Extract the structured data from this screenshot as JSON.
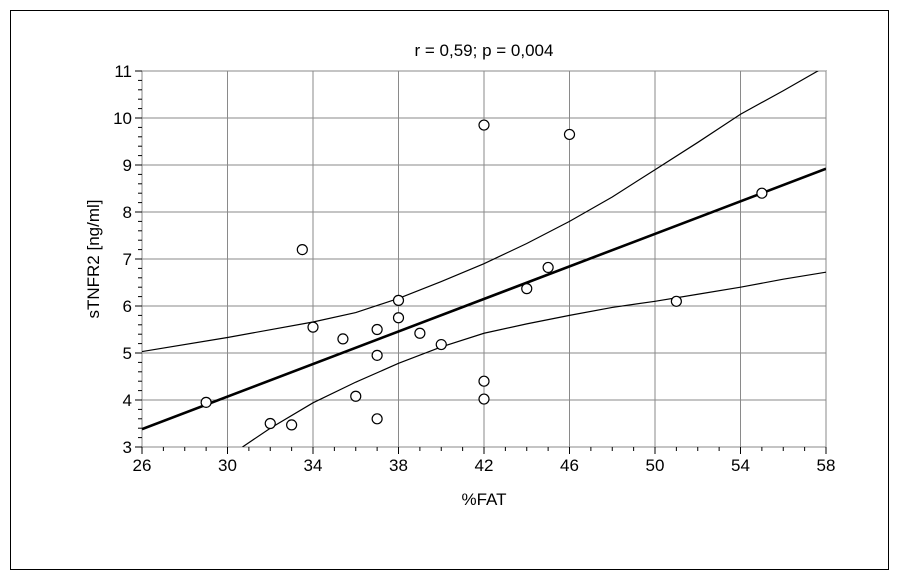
{
  "chart_data": {
    "type": "scatter",
    "title": "r = 0,59; p = 0,004",
    "xlabel": "%FAT",
    "ylabel": "sTNFR2 [ng/ml]",
    "xlim": [
      26,
      58
    ],
    "ylim": [
      3,
      11
    ],
    "xticks": [
      26,
      30,
      34,
      38,
      42,
      46,
      50,
      54,
      58
    ],
    "yticks": [
      3,
      4,
      5,
      6,
      7,
      8,
      9,
      10,
      11
    ],
    "grid": true,
    "points": [
      {
        "x": 29,
        "y": 3.95
      },
      {
        "x": 32,
        "y": 3.5
      },
      {
        "x": 33,
        "y": 3.47
      },
      {
        "x": 33.5,
        "y": 7.2
      },
      {
        "x": 34,
        "y": 5.55
      },
      {
        "x": 35.4,
        "y": 5.3
      },
      {
        "x": 36,
        "y": 4.08
      },
      {
        "x": 37,
        "y": 3.6
      },
      {
        "x": 37,
        "y": 4.95
      },
      {
        "x": 37,
        "y": 5.5
      },
      {
        "x": 38,
        "y": 5.75
      },
      {
        "x": 38,
        "y": 6.12
      },
      {
        "x": 39,
        "y": 5.42
      },
      {
        "x": 40,
        "y": 5.18
      },
      {
        "x": 42,
        "y": 4.02
      },
      {
        "x": 42,
        "y": 4.4
      },
      {
        "x": 42,
        "y": 9.85
      },
      {
        "x": 44,
        "y": 6.37
      },
      {
        "x": 45,
        "y": 6.82
      },
      {
        "x": 46,
        "y": 9.65
      },
      {
        "x": 51,
        "y": 6.1
      },
      {
        "x": 55,
        "y": 8.4
      }
    ],
    "regression_line": {
      "x": [
        26,
        58
      ],
      "y": [
        3.38,
        8.92
      ]
    },
    "confidence_upper": {
      "x": [
        26,
        30,
        34,
        36,
        38,
        40,
        42,
        44,
        46,
        48,
        50,
        52,
        54,
        56,
        58
      ],
      "y": [
        5.03,
        5.33,
        5.66,
        5.86,
        6.16,
        6.52,
        6.9,
        7.33,
        7.8,
        8.32,
        8.9,
        9.48,
        10.08,
        10.58,
        11.1
      ]
    },
    "confidence_lower": {
      "x": [
        30.7,
        32,
        34,
        36,
        38,
        40,
        42,
        44,
        46,
        48,
        50,
        52,
        54,
        56,
        58
      ],
      "y": [
        3.0,
        3.4,
        3.94,
        4.38,
        4.78,
        5.13,
        5.42,
        5.62,
        5.8,
        5.97,
        6.1,
        6.25,
        6.4,
        6.57,
        6.72
      ]
    }
  }
}
